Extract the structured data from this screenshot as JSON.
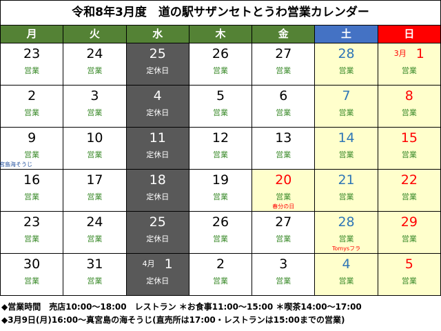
{
  "title": "令和8年3月度　道の駅サザンセトとうわ営業カレンダー",
  "weekdays": [
    "月",
    "火",
    "水",
    "木",
    "金",
    "土",
    "日"
  ],
  "weeks": [
    [
      {
        "date": 23,
        "status": "営業"
      },
      {
        "date": 24,
        "status": "営業"
      },
      {
        "date": 25,
        "status": "定休日"
      },
      {
        "date": 26,
        "status": "営業"
      },
      {
        "date": 27,
        "status": "営業"
      },
      {
        "date": 28,
        "status": "営業"
      },
      {
        "month": "3月",
        "date": 1,
        "status": "営業"
      }
    ],
    [
      {
        "date": 2,
        "status": "営業"
      },
      {
        "date": 3,
        "status": "営業"
      },
      {
        "date": 4,
        "status": "定休日"
      },
      {
        "date": 5,
        "status": "営業"
      },
      {
        "date": 6,
        "status": "営業"
      },
      {
        "date": 7,
        "status": "営業"
      },
      {
        "date": 8,
        "status": "営業"
      }
    ],
    [
      {
        "date": 9,
        "status": "営業",
        "note": "真宮島海そうじ"
      },
      {
        "date": 10,
        "status": "営業"
      },
      {
        "date": 11,
        "status": "定休日"
      },
      {
        "date": 12,
        "status": "営業"
      },
      {
        "date": 13,
        "status": "営業"
      },
      {
        "date": 14,
        "status": "営業"
      },
      {
        "date": 15,
        "status": "営業"
      }
    ],
    [
      {
        "date": 16,
        "status": "営業"
      },
      {
        "date": 17,
        "status": "営業"
      },
      {
        "date": 18,
        "status": "定休日"
      },
      {
        "date": 19,
        "status": "営業"
      },
      {
        "date": 20,
        "status": "営業",
        "note": "春分の日"
      },
      {
        "date": 21,
        "status": "営業"
      },
      {
        "date": 22,
        "status": "営業"
      }
    ],
    [
      {
        "date": 23,
        "status": "営業"
      },
      {
        "date": 24,
        "status": "営業"
      },
      {
        "date": 25,
        "status": "定休日"
      },
      {
        "date": 26,
        "status": "営業"
      },
      {
        "date": 27,
        "status": "営業"
      },
      {
        "date": 28,
        "status": "営業",
        "note": "Tomysフラ"
      },
      {
        "date": 29,
        "status": "営業"
      }
    ],
    [
      {
        "date": 30,
        "status": "営業"
      },
      {
        "date": 31,
        "status": "営業"
      },
      {
        "month": "4月",
        "date": 1,
        "status": "定休日"
      },
      {
        "date": 2,
        "status": "営業"
      },
      {
        "date": 3,
        "status": "営業"
      },
      {
        "date": 4,
        "status": "営業"
      },
      {
        "date": 5,
        "status": "営業"
      }
    ]
  ],
  "footer": [
    "◆営業時間　売店10:00～18:00　レストラン ＊お食事11:00～15:00 ＊喫茶14:00～17:00",
    "◆3月9日(月)16:00～真宮島の海そうじ(直売所は17:00・レストランは15:00までの営業)"
  ]
}
